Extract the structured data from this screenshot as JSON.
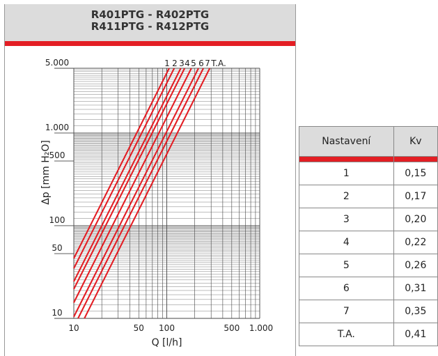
{
  "header": {
    "line1": "R401PTG - R402PTG",
    "line2": "R411PTG - R412PTG"
  },
  "colors": {
    "accent": "#e31e24",
    "header_bg": "#dcdcdc",
    "grid": "#444444"
  },
  "chart_data": {
    "type": "line",
    "scale": "log-log",
    "xlabel": "Q [l/h]",
    "ylabel": "Δp [mm H₂O]",
    "xlim": [
      10,
      1000
    ],
    "ylim": [
      10,
      5000
    ],
    "grid": true,
    "x_tick_labels": [
      {
        "value": 10,
        "label": "10"
      },
      {
        "value": 50,
        "label": "50"
      },
      {
        "value": 100,
        "label": "100"
      },
      {
        "value": 500,
        "label": "500"
      },
      {
        "value": 1000,
        "label": "1.000"
      }
    ],
    "y_tick_labels": [
      {
        "value": 10,
        "label": "10"
      },
      {
        "value": 50,
        "label": "50"
      },
      {
        "value": 100,
        "label": "100"
      },
      {
        "value": 500,
        "label": "500"
      },
      {
        "value": 1000,
        "label": "1.000"
      },
      {
        "value": 5000,
        "label": "5.000"
      }
    ],
    "line_labels": [
      "1",
      "2",
      "3",
      "4",
      "5",
      "6",
      "7",
      "T.A."
    ],
    "series": [
      {
        "label": "1",
        "kv": 0.15,
        "points": [
          [
            10,
            44.4
          ],
          [
            106.1,
            5000
          ]
        ]
      },
      {
        "label": "2",
        "kv": 0.17,
        "points": [
          [
            10,
            34.6
          ],
          [
            120.2,
            5000
          ]
        ]
      },
      {
        "label": "3",
        "kv": 0.2,
        "points": [
          [
            10,
            25.0
          ],
          [
            141.4,
            5000
          ]
        ]
      },
      {
        "label": "4",
        "kv": 0.22,
        "points": [
          [
            10,
            20.7
          ],
          [
            155.6,
            5000
          ]
        ]
      },
      {
        "label": "5",
        "kv": 0.26,
        "points": [
          [
            10,
            14.8
          ],
          [
            183.8,
            5000
          ]
        ]
      },
      {
        "label": "6",
        "kv": 0.31,
        "points": [
          [
            10,
            10.4
          ],
          [
            219.2,
            5000
          ]
        ]
      },
      {
        "label": "7",
        "kv": 0.35,
        "points": [
          [
            11.1,
            10
          ],
          [
            247.5,
            5000
          ]
        ]
      },
      {
        "label": "T.A.",
        "kv": 0.41,
        "points": [
          [
            13.0,
            10
          ],
          [
            289.9,
            5000
          ]
        ]
      }
    ]
  },
  "table": {
    "headers": [
      "Nastavení",
      "Kv"
    ],
    "rows": [
      [
        "1",
        "0,15"
      ],
      [
        "2",
        "0,17"
      ],
      [
        "3",
        "0,20"
      ],
      [
        "4",
        "0,22"
      ],
      [
        "5",
        "0,26"
      ],
      [
        "6",
        "0,31"
      ],
      [
        "7",
        "0,35"
      ],
      [
        "T.A.",
        "0,41"
      ]
    ]
  }
}
